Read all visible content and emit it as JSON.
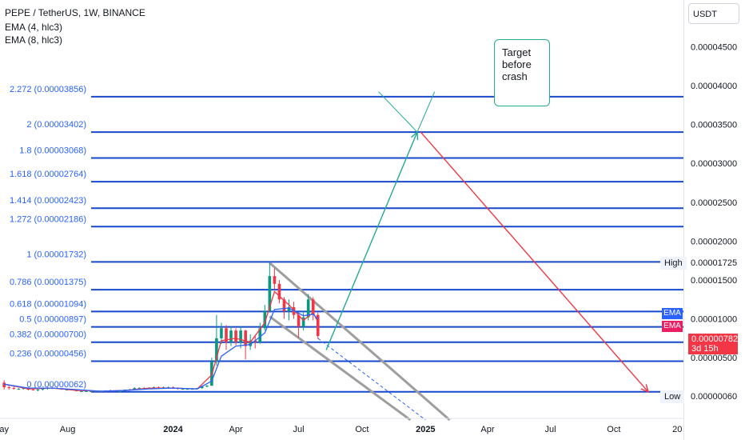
{
  "header": {
    "title": "PEPE / TetherUS, 1W, BINANCE",
    "ema1": "EMA (4, hlc3)",
    "ema2": "EMA (8, hlc3)"
  },
  "currency": "USDT",
  "annotation": {
    "text": "Target\nbefore\ncrash"
  },
  "markers": {
    "high_label": "High",
    "high_value": "0.00001725",
    "low_label": "Low",
    "low_value": "0.00000060",
    "ema_tag_1": "EMA",
    "ema_tag_2": "EMA",
    "current_price": "0.00000782",
    "countdown": "3d 15h"
  },
  "colors": {
    "fib": "#1848cc",
    "fib_text": "#2962ff",
    "up": "#089981",
    "down": "#f23645",
    "ema4": "#f23645",
    "ema8": "#2962ff",
    "channel": "#9e9e9e",
    "arrow_up": "#22ab94",
    "arrow_down": "#f23645",
    "ema_tag_1": "#2962ff",
    "ema_tag_2": "#e91e63"
  },
  "chart_data": {
    "type": "candlestick",
    "symbol": "PEPE / TetherUS",
    "interval": "1W",
    "exchange": "BINANCE",
    "y_axis": {
      "ticks": [
        "0.00004500",
        "0.00004000",
        "0.00003500",
        "0.00003000",
        "0.00002500",
        "0.00002000",
        "0.00001500",
        "0.00001000",
        "0.00000500"
      ],
      "tick_values": [
        4.5e-05,
        4e-05,
        3.5e-05,
        3e-05,
        2.5e-05,
        2e-05,
        1.5e-05,
        1e-05,
        5e-06
      ],
      "range": [
        -2.8e-06,
        5.1e-05
      ]
    },
    "x_axis": {
      "ticks": [
        "ay",
        "Aug",
        "2024",
        "Apr",
        "Jul",
        "Oct",
        "2025",
        "Apr",
        "Jul",
        "Oct",
        "20"
      ],
      "tick_dates": [
        "2023-05-01",
        "2023-08-01",
        "2024-01-01",
        "2024-04-01",
        "2024-07-01",
        "2024-10-01",
        "2025-01-01",
        "2025-04-01",
        "2025-07-01",
        "2025-10-01",
        "2026-01-01"
      ],
      "range": [
        "2023-04-25",
        "2026-01-10"
      ]
    },
    "fib_levels": [
      {
        "ratio": "0",
        "price": 6.2e-07,
        "label": "0 (0.00000062)"
      },
      {
        "ratio": "0.236",
        "price": 4.56e-06,
        "label": "0.236 (0.00000456)"
      },
      {
        "ratio": "0.382",
        "price": 7e-06,
        "label": "0.382 (0.00000700)"
      },
      {
        "ratio": "0.5",
        "price": 8.97e-06,
        "label": "0.5 (0.00000897)"
      },
      {
        "ratio": "0.618",
        "price": 1.094e-05,
        "label": "0.618 (0.00001094)"
      },
      {
        "ratio": "0.786",
        "price": 1.375e-05,
        "label": "0.786 (0.00001375)"
      },
      {
        "ratio": "1",
        "price": 1.732e-05,
        "label": "1 (0.00001732)"
      },
      {
        "ratio": "1.272",
        "price": 2.186e-05,
        "label": "1.272 (0.00002186)"
      },
      {
        "ratio": "1.414",
        "price": 2.423e-05,
        "label": "1.414 (0.00002423)"
      },
      {
        "ratio": "1.618",
        "price": 2.764e-05,
        "label": "1.618 (0.00002764)"
      },
      {
        "ratio": "1.8",
        "price": 3.068e-05,
        "label": "1.8 (0.00003068)"
      },
      {
        "ratio": "2",
        "price": 3.402e-05,
        "label": "2 (0.00003402)"
      },
      {
        "ratio": "2.272",
        "price": 3.856e-05,
        "label": "2.272 (0.00003856)"
      }
    ],
    "candles": [
      {
        "date": "2023-05-01",
        "o": 1.8e-06,
        "h": 2.1e-06,
        "l": 9e-07,
        "c": 1.2e-06
      },
      {
        "date": "2023-05-08",
        "o": 1.2e-06,
        "h": 1.4e-06,
        "l": 9e-07,
        "c": 1.1e-06
      },
      {
        "date": "2023-05-15",
        "o": 1.1e-06,
        "h": 1.3e-06,
        "l": 9e-07,
        "c": 1e-06
      },
      {
        "date": "2023-05-22",
        "o": 1e-06,
        "h": 1.1e-06,
        "l": 9e-07,
        "c": 1e-06
      },
      {
        "date": "2023-05-29",
        "o": 1e-06,
        "h": 1.1e-06,
        "l": 9e-07,
        "c": 1.1e-06
      },
      {
        "date": "2023-06-05",
        "o": 1.1e-06,
        "h": 1.2e-06,
        "l": 8e-07,
        "c": 9e-07
      },
      {
        "date": "2023-06-12",
        "o": 9e-07,
        "h": 1e-06,
        "l": 8e-07,
        "c": 8e-07
      },
      {
        "date": "2023-06-19",
        "o": 8e-07,
        "h": 1e-06,
        "l": 7e-07,
        "c": 9e-07
      },
      {
        "date": "2023-06-26",
        "o": 9e-07,
        "h": 1.1e-06,
        "l": 8e-07,
        "c": 1e-06
      },
      {
        "date": "2023-07-03",
        "o": 1e-06,
        "h": 1.2e-06,
        "l": 9e-07,
        "c": 1.1e-06
      },
      {
        "date": "2023-07-10",
        "o": 1.1e-06,
        "h": 1.2e-06,
        "l": 1e-06,
        "c": 1.1e-06
      },
      {
        "date": "2023-07-17",
        "o": 1.1e-06,
        "h": 1.2e-06,
        "l": 1e-06,
        "c": 1e-06
      },
      {
        "date": "2023-07-24",
        "o": 1e-06,
        "h": 1.1e-06,
        "l": 9e-07,
        "c": 9e-07
      },
      {
        "date": "2023-07-31",
        "o": 9e-07,
        "h": 1e-06,
        "l": 8e-07,
        "c": 9e-07
      },
      {
        "date": "2023-08-07",
        "o": 9e-07,
        "h": 1e-06,
        "l": 8e-07,
        "c": 8e-07
      },
      {
        "date": "2023-08-14",
        "o": 8e-07,
        "h": 9e-07,
        "l": 7e-07,
        "c": 7e-07
      },
      {
        "date": "2023-08-21",
        "o": 7e-07,
        "h": 8e-07,
        "l": 6e-07,
        "c": 7e-07
      },
      {
        "date": "2023-08-28",
        "o": 7e-07,
        "h": 8e-07,
        "l": 6e-07,
        "c": 7e-07
      },
      {
        "date": "2023-09-04",
        "o": 7e-07,
        "h": 8e-07,
        "l": 6e-07,
        "c": 7e-07
      },
      {
        "date": "2023-09-11",
        "o": 7e-07,
        "h": 8e-07,
        "l": 6e-07,
        "c": 7e-07
      },
      {
        "date": "2023-09-18",
        "o": 7e-07,
        "h": 8e-07,
        "l": 6e-07,
        "c": 7e-07
      },
      {
        "date": "2023-09-25",
        "o": 7e-07,
        "h": 8e-07,
        "l": 6e-07,
        "c": 8e-07
      },
      {
        "date": "2023-10-02",
        "o": 8e-07,
        "h": 9e-07,
        "l": 7e-07,
        "c": 8e-07
      },
      {
        "date": "2023-10-09",
        "o": 8e-07,
        "h": 8e-07,
        "l": 6e-07,
        "c": 7e-07
      },
      {
        "date": "2023-10-16",
        "o": 7e-07,
        "h": 8e-07,
        "l": 6e-07,
        "c": 7e-07
      },
      {
        "date": "2023-10-23",
        "o": 7e-07,
        "h": 9e-07,
        "l": 7e-07,
        "c": 9e-07
      },
      {
        "date": "2023-10-30",
        "o": 9e-07,
        "h": 1e-06,
        "l": 8e-07,
        "c": 9e-07
      },
      {
        "date": "2023-11-06",
        "o": 9e-07,
        "h": 1.2e-06,
        "l": 9e-07,
        "c": 1.1e-06
      },
      {
        "date": "2023-11-13",
        "o": 1.1e-06,
        "h": 1.2e-06,
        "l": 1e-06,
        "c": 1.1e-06
      },
      {
        "date": "2023-11-20",
        "o": 1.1e-06,
        "h": 1.2e-06,
        "l": 1e-06,
        "c": 1.1e-06
      },
      {
        "date": "2023-11-27",
        "o": 1.1e-06,
        "h": 1.2e-06,
        "l": 1e-06,
        "c": 1.1e-06
      },
      {
        "date": "2023-12-04",
        "o": 1.1e-06,
        "h": 1.3e-06,
        "l": 1e-06,
        "c": 1.2e-06
      },
      {
        "date": "2023-12-11",
        "o": 1.2e-06,
        "h": 1.3e-06,
        "l": 1.1e-06,
        "c": 1.1e-06
      },
      {
        "date": "2023-12-18",
        "o": 1.1e-06,
        "h": 1.3e-06,
        "l": 1e-06,
        "c": 1.2e-06
      },
      {
        "date": "2023-12-25",
        "o": 1.2e-06,
        "h": 1.3e-06,
        "l": 1.1e-06,
        "c": 1.2e-06
      },
      {
        "date": "2024-01-01",
        "o": 1.2e-06,
        "h": 1.3e-06,
        "l": 1e-06,
        "c": 1.1e-06
      },
      {
        "date": "2024-01-08",
        "o": 1.1e-06,
        "h": 1.2e-06,
        "l": 9e-07,
        "c": 1e-06
      },
      {
        "date": "2024-01-15",
        "o": 1e-06,
        "h": 1.1e-06,
        "l": 9e-07,
        "c": 1e-06
      },
      {
        "date": "2024-01-22",
        "o": 1e-06,
        "h": 1.1e-06,
        "l": 9e-07,
        "c": 1e-06
      },
      {
        "date": "2024-01-29",
        "o": 1e-06,
        "h": 1.1e-06,
        "l": 9e-07,
        "c": 1e-06
      },
      {
        "date": "2024-02-05",
        "o": 1e-06,
        "h": 1.1e-06,
        "l": 9e-07,
        "c": 1.1e-06
      },
      {
        "date": "2024-02-12",
        "o": 1.1e-06,
        "h": 1.4e-06,
        "l": 1e-06,
        "c": 1.3e-06
      },
      {
        "date": "2024-02-19",
        "o": 1.3e-06,
        "h": 1.5e-06,
        "l": 1.2e-06,
        "c": 1.4e-06
      },
      {
        "date": "2024-02-26",
        "o": 1.4e-06,
        "h": 5e-06,
        "l": 1.4e-06,
        "c": 4.5e-06
      },
      {
        "date": "2024-03-04",
        "o": 4.5e-06,
        "h": 1.05e-05,
        "l": 4e-06,
        "c": 7.5e-06
      },
      {
        "date": "2024-03-11",
        "o": 7.5e-06,
        "h": 9.5e-06,
        "l": 6.8e-06,
        "c": 8.8e-06
      },
      {
        "date": "2024-03-18",
        "o": 8.8e-06,
        "h": 9.2e-06,
        "l": 6e-06,
        "c": 7e-06
      },
      {
        "date": "2024-03-25",
        "o": 7e-06,
        "h": 9e-06,
        "l": 6.5e-06,
        "c": 8.5e-06
      },
      {
        "date": "2024-04-01",
        "o": 8.5e-06,
        "h": 8.8e-06,
        "l": 6.6e-06,
        "c": 7e-06
      },
      {
        "date": "2024-04-08",
        "o": 7e-06,
        "h": 9e-06,
        "l": 6.2e-06,
        "c": 8.5e-06
      },
      {
        "date": "2024-04-15",
        "o": 8.5e-06,
        "h": 8.6e-06,
        "l": 4.8e-06,
        "c": 6.5e-06
      },
      {
        "date": "2024-04-22",
        "o": 6.5e-06,
        "h": 8e-06,
        "l": 6e-06,
        "c": 7.2e-06
      },
      {
        "date": "2024-04-29",
        "o": 7.2e-06,
        "h": 7.8e-06,
        "l": 6.2e-06,
        "c": 7e-06
      },
      {
        "date": "2024-05-06",
        "o": 7e-06,
        "h": 9.5e-06,
        "l": 6.8e-06,
        "c": 8.8e-06
      },
      {
        "date": "2024-05-13",
        "o": 8.8e-06,
        "h": 1.18e-05,
        "l": 8.5e-06,
        "c": 1.1e-05
      },
      {
        "date": "2024-05-20",
        "o": 1.1e-05,
        "h": 1.72e-05,
        "l": 1.08e-05,
        "c": 1.55e-05
      },
      {
        "date": "2024-05-27",
        "o": 1.55e-05,
        "h": 1.65e-05,
        "l": 1.38e-05,
        "c": 1.45e-05
      },
      {
        "date": "2024-06-03",
        "o": 1.45e-05,
        "h": 1.5e-05,
        "l": 1.2e-05,
        "c": 1.25e-05
      },
      {
        "date": "2024-06-10",
        "o": 1.25e-05,
        "h": 1.28e-05,
        "l": 1e-05,
        "c": 1.1e-05
      },
      {
        "date": "2024-06-17",
        "o": 1.1e-05,
        "h": 1.25e-05,
        "l": 9.8e-06,
        "c": 1.15e-05
      },
      {
        "date": "2024-06-24",
        "o": 1.15e-05,
        "h": 1.22e-05,
        "l": 1e-05,
        "c": 1.05e-05
      },
      {
        "date": "2024-07-01",
        "o": 1.05e-05,
        "h": 1.08e-05,
        "l": 7.6e-06,
        "c": 9e-06
      },
      {
        "date": "2024-07-08",
        "o": 9e-06,
        "h": 1.1e-05,
        "l": 8.5e-06,
        "c": 1.02e-05
      },
      {
        "date": "2024-07-15",
        "o": 1.02e-05,
        "h": 1.32e-05,
        "l": 9.8e-06,
        "c": 1.25e-05
      },
      {
        "date": "2024-07-22",
        "o": 1.25e-05,
        "h": 1.28e-05,
        "l": 9.8e-06,
        "c": 1.05e-05
      },
      {
        "date": "2024-07-29",
        "o": 1.05e-05,
        "h": 1.08e-05,
        "l": 7.4e-06,
        "c": 7.8e-06
      }
    ],
    "ema_4_hlc3": [
      [
        "2023-05-01",
        1.6e-06
      ],
      [
        "2023-06-05",
        1e-06
      ],
      [
        "2023-07-10",
        1.1e-06
      ],
      [
        "2023-08-14",
        8e-07
      ],
      [
        "2023-09-18",
        7e-07
      ],
      [
        "2023-10-23",
        8e-07
      ],
      [
        "2023-11-27",
        1.1e-06
      ],
      [
        "2024-01-01",
        1.1e-06
      ],
      [
        "2024-02-05",
        1e-06
      ],
      [
        "2024-02-26",
        2.8e-06
      ],
      [
        "2024-03-11",
        7.2e-06
      ],
      [
        "2024-04-01",
        7.5e-06
      ],
      [
        "2024-04-22",
        7e-06
      ],
      [
        "2024-05-13",
        9.5e-06
      ],
      [
        "2024-05-27",
        1.35e-05
      ],
      [
        "2024-06-17",
        1.18e-05
      ],
      [
        "2024-07-08",
        9.8e-06
      ],
      [
        "2024-07-22",
        1.08e-05
      ],
      [
        "2024-07-29",
        9.6e-06
      ]
    ],
    "ema_8_hlc3": [
      [
        "2023-05-01",
        1.6e-06
      ],
      [
        "2023-06-05",
        1.1e-06
      ],
      [
        "2023-07-10",
        1.1e-06
      ],
      [
        "2023-08-14",
        9e-07
      ],
      [
        "2023-09-18",
        7e-07
      ],
      [
        "2023-10-23",
        8e-07
      ],
      [
        "2023-11-27",
        1e-06
      ],
      [
        "2024-01-01",
        1.1e-06
      ],
      [
        "2024-02-05",
        1e-06
      ],
      [
        "2024-02-26",
        2e-06
      ],
      [
        "2024-03-11",
        5.2e-06
      ],
      [
        "2024-04-01",
        6.5e-06
      ],
      [
        "2024-04-22",
        6.7e-06
      ],
      [
        "2024-05-13",
        8.2e-06
      ],
      [
        "2024-05-27",
        1.12e-05
      ],
      [
        "2024-06-17",
        1.14e-05
      ],
      [
        "2024-07-08",
        1.04e-05
      ],
      [
        "2024-07-22",
        1.06e-05
      ],
      [
        "2024-07-29",
        1e-05
      ]
    ],
    "channel": {
      "upper": [
        [
          "2024-05-20",
          1.72e-05
        ],
        [
          "2025-02-05",
          -3e-06
        ]
      ],
      "lower": [
        [
          "2024-05-20",
          1.03e-05
        ],
        [
          "2024-12-10",
          -3e-06
        ]
      ],
      "dashed": [
        [
          "2024-07-29",
          7.5e-06
        ],
        [
          "2025-01-01",
          -3e-06
        ]
      ]
    },
    "arrows": [
      {
        "from": [
          "2024-08-10",
          6e-06
        ],
        "to": [
          "2024-12-20",
          3.402e-05
        ]
      },
      {
        "from": [
          "2024-12-25",
          3.402e-05
        ],
        "to": [
          "2025-11-20",
          6e-07
        ]
      }
    ],
    "annotation_pointer": {
      "box_corner": [
        "2024-10-25",
        3.92e-05
      ],
      "tip": [
        "2024-12-20",
        3.402e-05
      ]
    },
    "grid": false
  }
}
